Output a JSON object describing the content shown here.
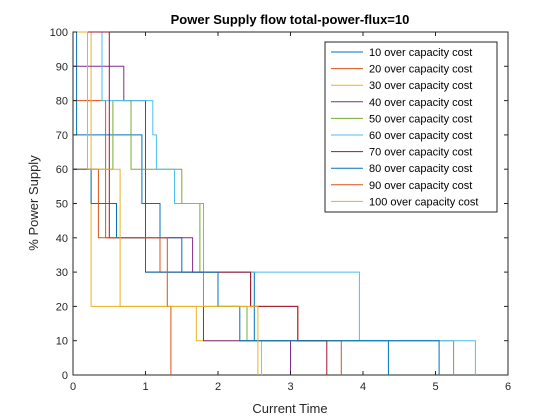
{
  "chart_data": {
    "type": "line",
    "title": "Power Supply flow total-power-flux=10",
    "xlabel": "Current Time",
    "ylabel": "% Power Supply",
    "xlim": [
      0,
      6
    ],
    "ylim": [
      0,
      100
    ],
    "xticks": [
      "0",
      "1",
      "2",
      "3",
      "4",
      "5",
      "6"
    ],
    "yticks": [
      "0",
      "10",
      "20",
      "30",
      "40",
      "50",
      "60",
      "70",
      "80",
      "90",
      "100"
    ],
    "grid": false,
    "legend_position": "top-right",
    "series": [
      {
        "name": "10 over capacity cost",
        "color": "#0072BD",
        "points": [
          [
            0,
            100
          ],
          [
            0.05,
            100
          ],
          [
            0.05,
            70
          ],
          [
            0.95,
            70
          ],
          [
            0.95,
            50
          ],
          [
            1.2,
            50
          ],
          [
            1.2,
            40
          ],
          [
            1.5,
            40
          ],
          [
            1.5,
            30
          ],
          [
            2.5,
            30
          ],
          [
            2.5,
            10
          ],
          [
            4.35,
            10
          ],
          [
            4.35,
            0
          ]
        ]
      },
      {
        "name": "20 over capacity cost",
        "color": "#D95319",
        "points": [
          [
            0,
            80
          ],
          [
            0.45,
            80
          ],
          [
            0.45,
            40
          ],
          [
            1.2,
            40
          ],
          [
            1.2,
            30
          ],
          [
            2.45,
            30
          ],
          [
            2.45,
            20
          ],
          [
            3.1,
            20
          ],
          [
            3.1,
            10
          ],
          [
            3.7,
            10
          ],
          [
            3.7,
            0
          ]
        ]
      },
      {
        "name": "30 over capacity cost",
        "color": "#EDB120",
        "points": [
          [
            0,
            100
          ],
          [
            0.25,
            100
          ],
          [
            0.25,
            20
          ],
          [
            1.7,
            20
          ],
          [
            1.7,
            10
          ],
          [
            2.6,
            10
          ],
          [
            2.6,
            0
          ]
        ]
      },
      {
        "name": "40 over capacity cost",
        "color": "#7E2F8E",
        "points": [
          [
            0,
            90
          ],
          [
            0.7,
            90
          ],
          [
            0.7,
            80
          ],
          [
            1.0,
            80
          ],
          [
            1.0,
            40
          ],
          [
            1.65,
            40
          ],
          [
            1.65,
            30
          ],
          [
            1.8,
            30
          ],
          [
            1.8,
            10
          ],
          [
            3.0,
            10
          ],
          [
            3.0,
            0
          ]
        ]
      },
      {
        "name": "50 over capacity cost",
        "color": "#77AC30",
        "points": [
          [
            0,
            60
          ],
          [
            0.55,
            60
          ],
          [
            0.55,
            80
          ],
          [
            0.8,
            80
          ],
          [
            0.8,
            60
          ],
          [
            1.5,
            60
          ],
          [
            1.5,
            50
          ],
          [
            1.75,
            50
          ],
          [
            1.75,
            30
          ],
          [
            1.8,
            30
          ],
          [
            1.8,
            20
          ],
          [
            2.4,
            20
          ],
          [
            2.4,
            10
          ],
          [
            5.25,
            10
          ],
          [
            5.25,
            0
          ]
        ]
      },
      {
        "name": "60 over capacity cost",
        "color": "#4DBEEE",
        "points": [
          [
            0,
            100
          ],
          [
            0.4,
            100
          ],
          [
            0.4,
            80
          ],
          [
            1.1,
            80
          ],
          [
            1.1,
            70
          ],
          [
            1.15,
            70
          ],
          [
            1.15,
            60
          ],
          [
            1.4,
            60
          ],
          [
            1.4,
            50
          ],
          [
            1.8,
            50
          ],
          [
            1.8,
            30
          ],
          [
            3.95,
            30
          ],
          [
            3.95,
            10
          ],
          [
            5.55,
            10
          ],
          [
            5.55,
            0
          ]
        ]
      },
      {
        "name": "70 over capacity cost",
        "color": "#A2142F",
        "points": [
          [
            0,
            100
          ],
          [
            0.5,
            100
          ],
          [
            0.5,
            40
          ],
          [
            1.0,
            40
          ],
          [
            1.0,
            30
          ],
          [
            2.45,
            30
          ],
          [
            2.45,
            20
          ],
          [
            3.1,
            20
          ],
          [
            3.1,
            10
          ],
          [
            3.5,
            10
          ],
          [
            3.5,
            0
          ]
        ]
      },
      {
        "name": "80 over capacity cost",
        "color": "#0072BD",
        "points": [
          [
            0,
            60
          ],
          [
            0.25,
            60
          ],
          [
            0.25,
            50
          ],
          [
            0.6,
            50
          ],
          [
            0.6,
            40
          ],
          [
            1.0,
            40
          ],
          [
            1.0,
            30
          ],
          [
            2.0,
            30
          ],
          [
            2.0,
            20
          ],
          [
            2.3,
            20
          ],
          [
            2.3,
            10
          ],
          [
            5.05,
            10
          ],
          [
            5.05,
            0
          ]
        ]
      },
      {
        "name": "90 over capacity cost",
        "color": "#D95319",
        "points": [
          [
            0,
            60
          ],
          [
            0.35,
            60
          ],
          [
            0.35,
            40
          ],
          [
            1.3,
            40
          ],
          [
            1.3,
            20
          ],
          [
            1.35,
            20
          ],
          [
            1.35,
            0
          ]
        ]
      },
      {
        "name": "100 over capacity cost",
        "color": "#EDB120",
        "points": [
          [
            0,
            100
          ],
          [
            0.2,
            100
          ],
          [
            0.2,
            60
          ],
          [
            0.65,
            60
          ],
          [
            0.65,
            20
          ],
          [
            2.55,
            20
          ],
          [
            2.55,
            0
          ]
        ]
      }
    ]
  }
}
